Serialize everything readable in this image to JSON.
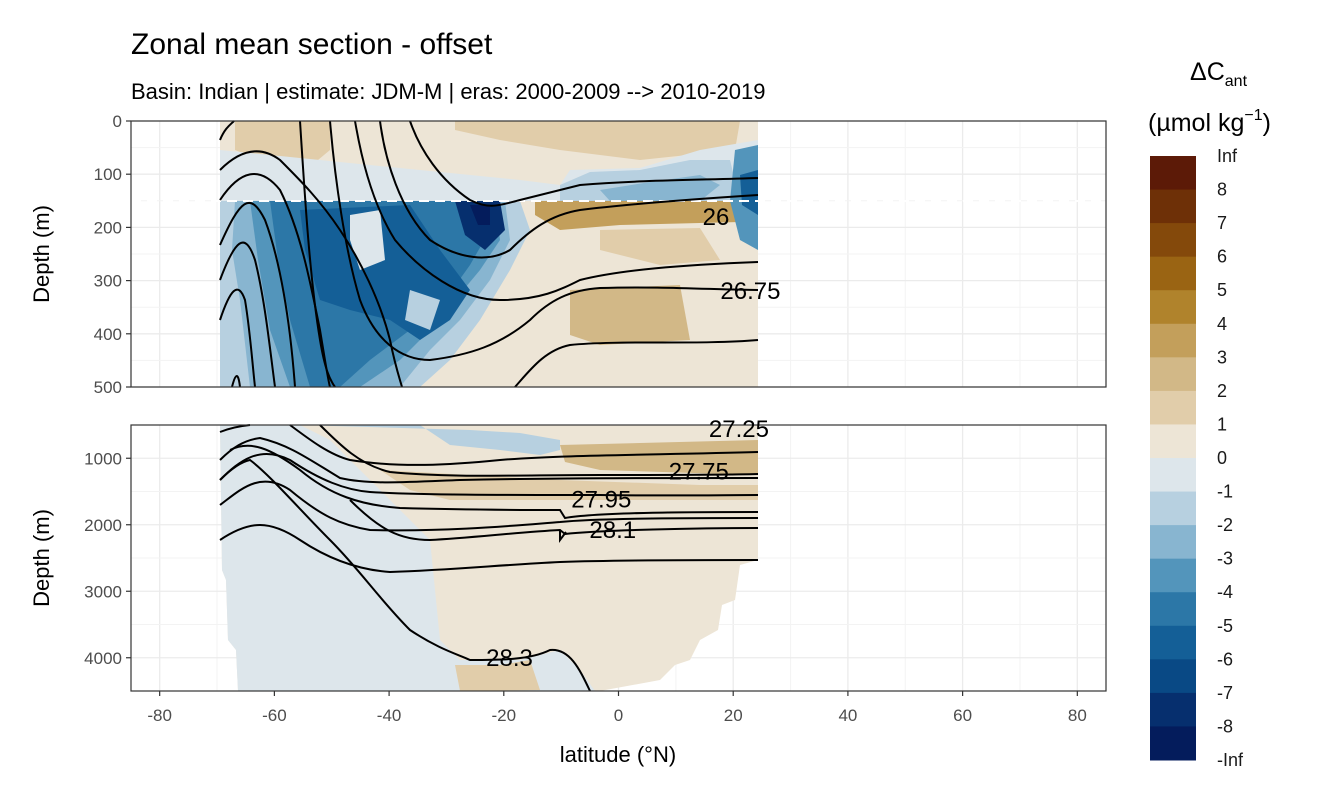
{
  "chart_data": {
    "type": "contour-section",
    "title": "Zonal mean section - offset",
    "subtitle": "Basin: Indian | estimate: JDM-M | eras: 2000-2009 --> 2010-2019",
    "xlabel": "latitude (°N)",
    "xlim": [
      -85,
      85
    ],
    "x_ticks": [
      -80,
      -60,
      -40,
      -20,
      0,
      20,
      40,
      60,
      80
    ],
    "panels": [
      {
        "name": "upper",
        "ylabel": "Depth (m)",
        "ylim": [
          500,
          0
        ],
        "y_ticks": [
          0,
          100,
          200,
          300,
          400,
          500
        ],
        "reference_depth": 150,
        "isopycnal_labels": [
          {
            "text": "26",
            "lat": 17,
            "depth": 180
          },
          {
            "text": "26.75",
            "lat": 23,
            "depth": 320
          }
        ]
      },
      {
        "name": "lower",
        "ylabel": "Depth (m)",
        "ylim": [
          4500,
          500
        ],
        "y_ticks": [
          1000,
          2000,
          3000,
          4000
        ],
        "isopycnal_labels": [
          {
            "text": "27.25",
            "lat": 21,
            "depth": 560
          },
          {
            "text": "27.75",
            "lat": 14,
            "depth": 1200
          },
          {
            "text": "27.95",
            "lat": -3,
            "depth": 1620
          },
          {
            "text": "28.1",
            "lat": -1,
            "depth": 2080
          },
          {
            "text": "28.3",
            "lat": -19,
            "depth": 4000
          }
        ]
      }
    ],
    "legend": {
      "title": "ΔC",
      "title_sub": "ant",
      "unit": "(µmol kg",
      "unit_sup": "−1",
      "unit_close": ")",
      "labels": [
        "Inf",
        "8",
        "7",
        "6",
        "5",
        "4",
        "3",
        "2",
        "1",
        "0",
        "-1",
        "-2",
        "-3",
        "-4",
        "-5",
        "-6",
        "-7",
        "-8",
        "-Inf"
      ],
      "colors": [
        "#5c1a07",
        "#6e3007",
        "#84490b",
        "#9a6413",
        "#b0832c",
        "#c39f5b",
        "#d2b887",
        "#e1cdaa",
        "#ede5d6",
        "#dde6eb",
        "#b7d0e0",
        "#88b5d0",
        "#5395bb",
        "#2c77a7",
        "#145f97",
        "#094985",
        "#062f6e",
        "#041c5c"
      ]
    }
  }
}
